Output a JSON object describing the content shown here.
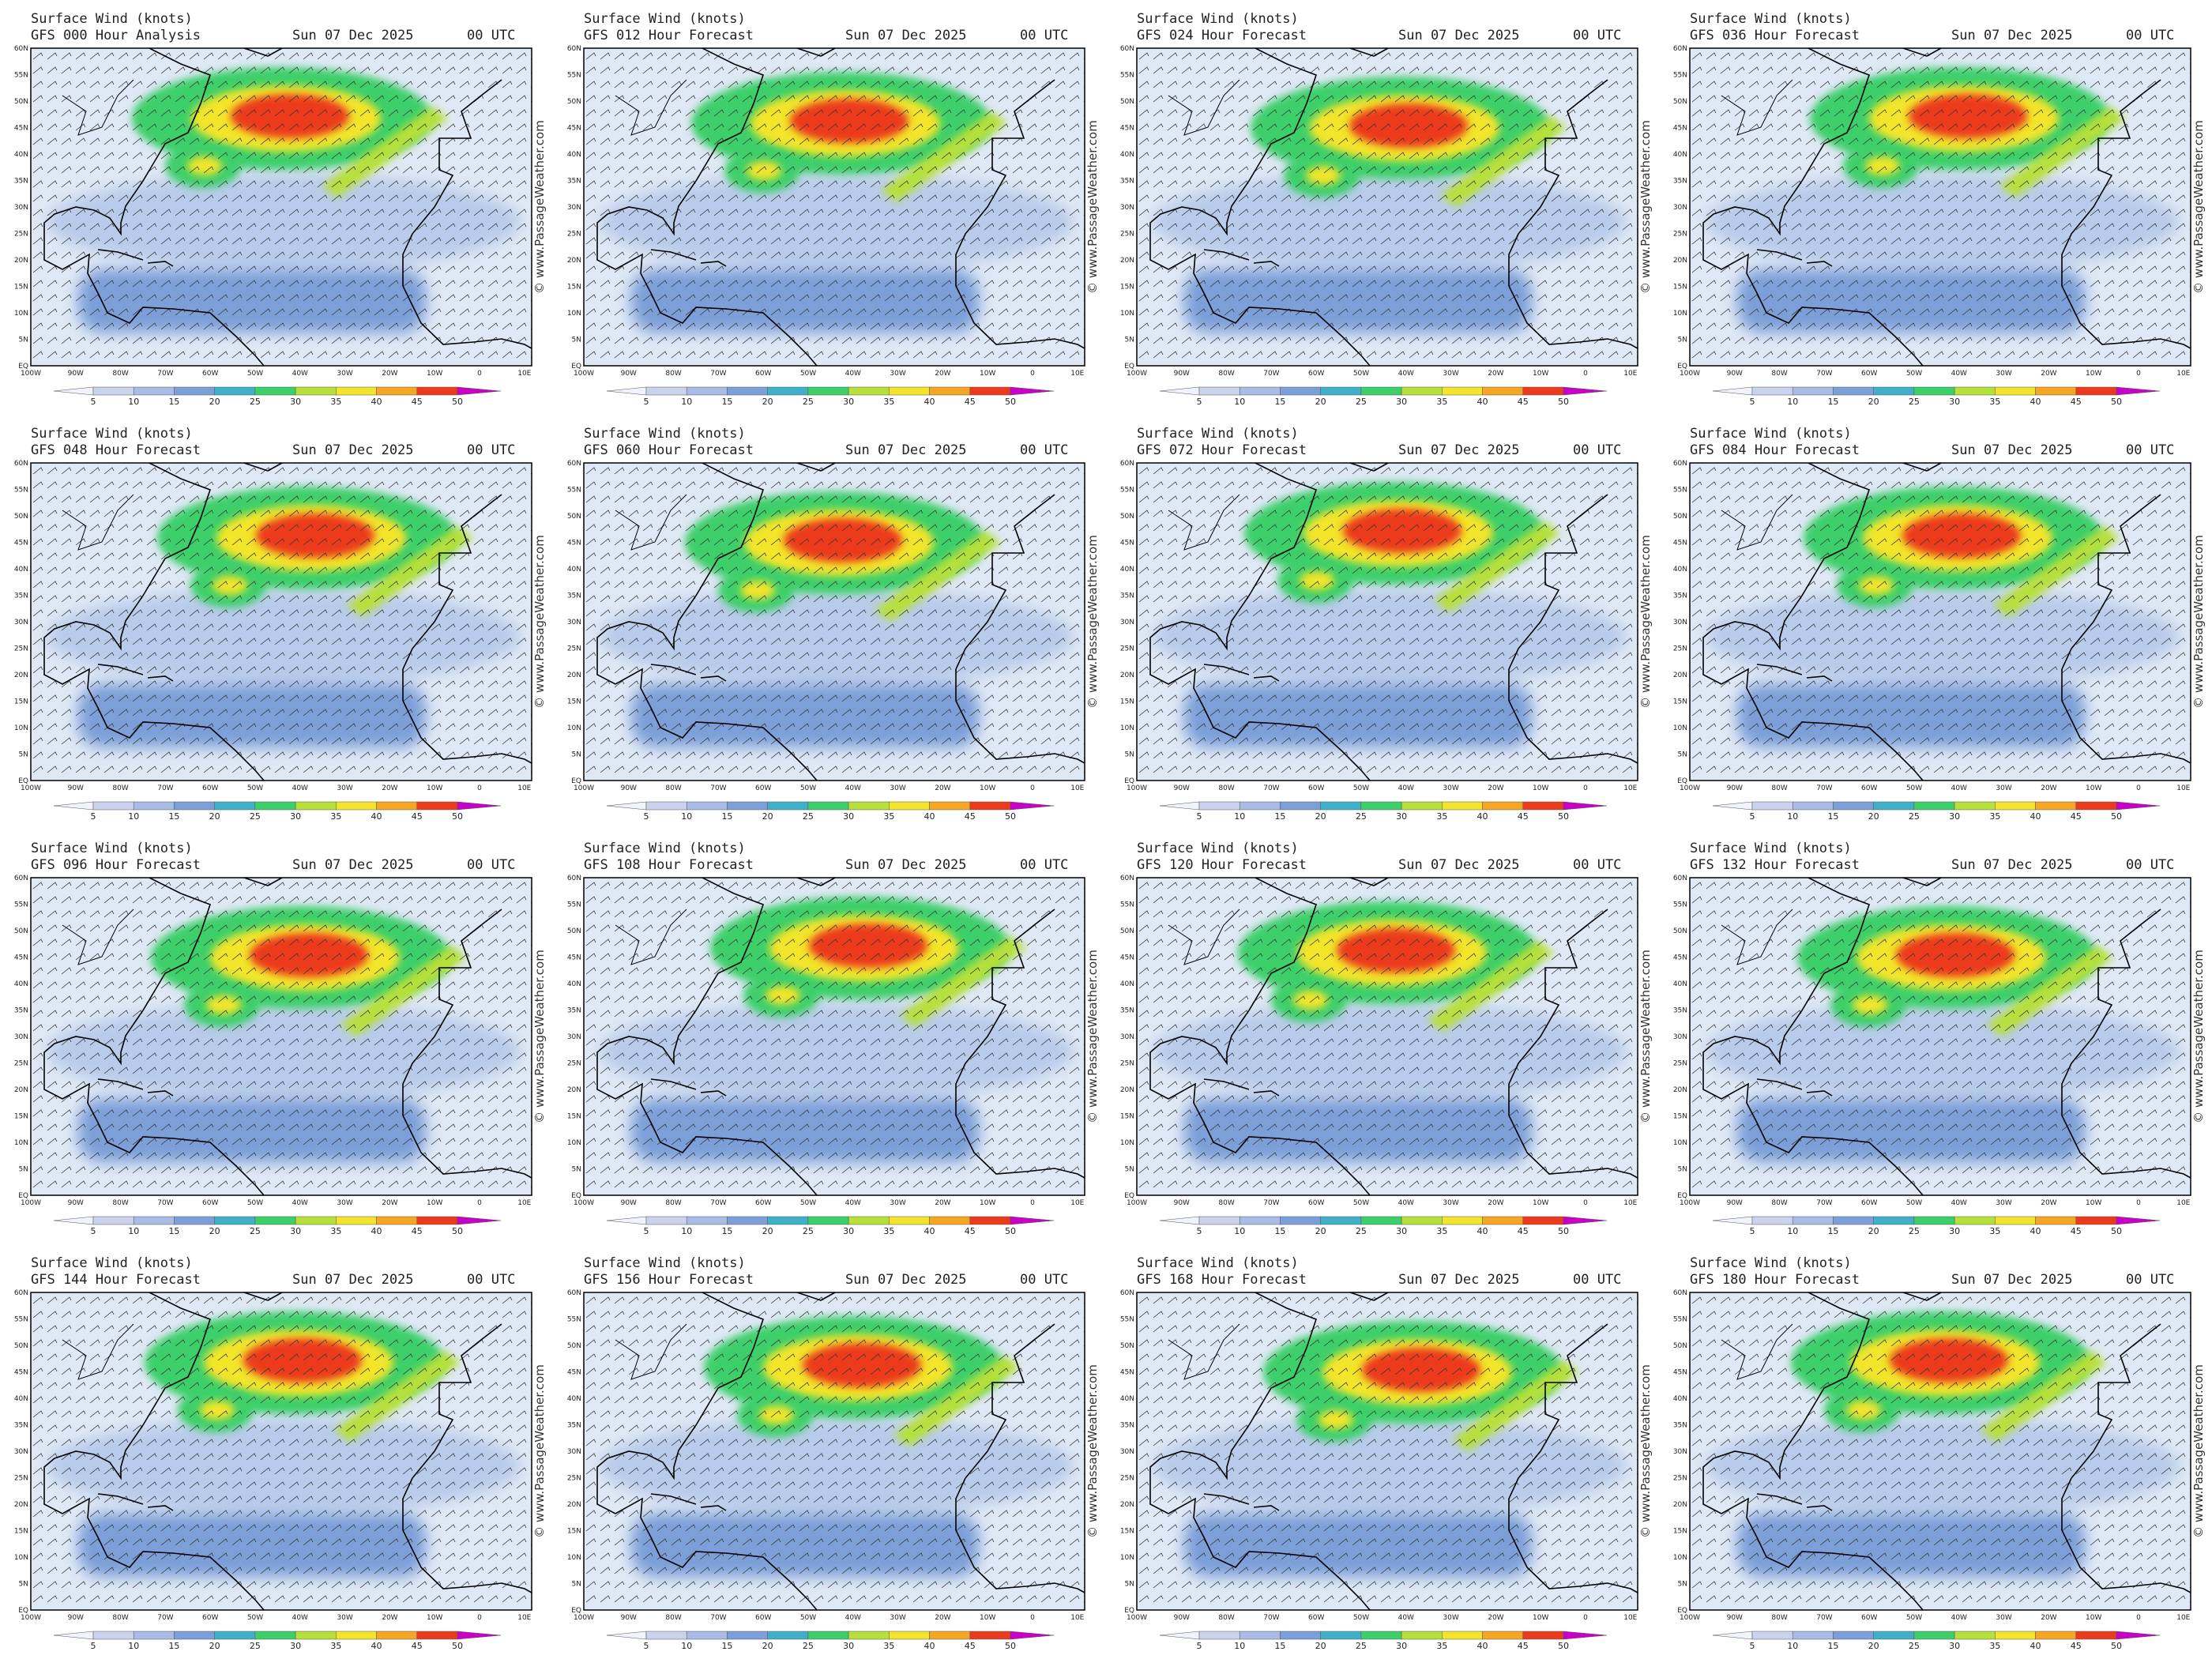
{
  "panels": [
    {
      "title": "Surface Wind (knots)",
      "forecast": "GFS 000 Hour Analysis",
      "date": "Sun 07 Dec 2025",
      "time": "00 UTC"
    },
    {
      "title": "Surface Wind (knots)",
      "forecast": "GFS 012 Hour Forecast",
      "date": "Sun 07 Dec 2025",
      "time": "00 UTC"
    },
    {
      "title": "Surface Wind (knots)",
      "forecast": "GFS 024 Hour Forecast",
      "date": "Sun 07 Dec 2025",
      "time": "00 UTC"
    },
    {
      "title": "Surface Wind (knots)",
      "forecast": "GFS 036 Hour Forecast",
      "date": "Sun 07 Dec 2025",
      "time": "00 UTC"
    },
    {
      "title": "Surface Wind (knots)",
      "forecast": "GFS 048 Hour Forecast",
      "date": "Sun 07 Dec 2025",
      "time": "00 UTC"
    },
    {
      "title": "Surface Wind (knots)",
      "forecast": "GFS 060 Hour Forecast",
      "date": "Sun 07 Dec 2025",
      "time": "00 UTC"
    },
    {
      "title": "Surface Wind (knots)",
      "forecast": "GFS 072 Hour Forecast",
      "date": "Sun 07 Dec 2025",
      "time": "00 UTC"
    },
    {
      "title": "Surface Wind (knots)",
      "forecast": "GFS 084 Hour Forecast",
      "date": "Sun 07 Dec 2025",
      "time": "00 UTC"
    },
    {
      "title": "Surface Wind (knots)",
      "forecast": "GFS 096 Hour Forecast",
      "date": "Sun 07 Dec 2025",
      "time": "00 UTC"
    },
    {
      "title": "Surface Wind (knots)",
      "forecast": "GFS 108 Hour Forecast",
      "date": "Sun 07 Dec 2025",
      "time": "00 UTC"
    },
    {
      "title": "Surface Wind (knots)",
      "forecast": "GFS 120 Hour Forecast",
      "date": "Sun 07 Dec 2025",
      "time": "00 UTC"
    },
    {
      "title": "Surface Wind (knots)",
      "forecast": "GFS 132 Hour Forecast",
      "date": "Sun 07 Dec 2025",
      "time": "00 UTC"
    },
    {
      "title": "Surface Wind (knots)",
      "forecast": "GFS 144 Hour Forecast",
      "date": "Sun 07 Dec 2025",
      "time": "00 UTC"
    },
    {
      "title": "Surface Wind (knots)",
      "forecast": "GFS 156 Hour Forecast",
      "date": "Sun 07 Dec 2025",
      "time": "00 UTC"
    },
    {
      "title": "Surface Wind (knots)",
      "forecast": "GFS 168 Hour Forecast",
      "date": "Sun 07 Dec 2025",
      "time": "00 UTC"
    },
    {
      "title": "Surface Wind (knots)",
      "forecast": "GFS 180 Hour Forecast",
      "date": "Sun 07 Dec 2025",
      "time": "00 UTC"
    }
  ],
  "lat_labels": [
    "60N",
    "55N",
    "50N",
    "45N",
    "40N",
    "35N",
    "30N",
    "25N",
    "20N",
    "15N",
    "10N",
    "5N",
    "EQ"
  ],
  "lon_labels": [
    "100W",
    "90W",
    "80W",
    "70W",
    "60W",
    "50W",
    "40W",
    "30W",
    "20W",
    "10W",
    "0",
    "10E"
  ],
  "colorbar_labels": [
    5,
    10,
    15,
    20,
    25,
    30,
    35,
    40,
    45,
    50
  ],
  "watermark": "© www.PassageWeather.com"
}
